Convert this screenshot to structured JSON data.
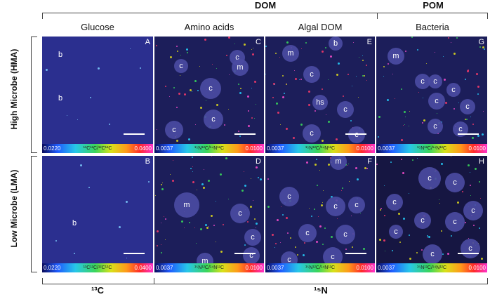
{
  "groups": {
    "dom": "DOM",
    "pom": "POM",
    "c13": "¹³C",
    "n15": "¹⁵N"
  },
  "columns": [
    "Glucose",
    "Amino acids",
    "Algal DOM",
    "Bacteria"
  ],
  "rows": [
    "High Microbe (HMA)",
    "Low Microbe (LMA)"
  ],
  "panels": [
    {
      "letter": "A",
      "scale_lo": "0.0220",
      "scale_mid": "¹³C¹²C/¹²C¹²C",
      "scale_hi": "0.0400"
    },
    {
      "letter": "C",
      "scale_lo": "0.0037",
      "scale_mid": "¹⁵N¹²C/¹⁴N¹²C",
      "scale_hi": "0.0100"
    },
    {
      "letter": "E",
      "scale_lo": "0.0037",
      "scale_mid": "¹⁵N¹²C/¹⁴N¹²C",
      "scale_hi": "0.0100"
    },
    {
      "letter": "G",
      "scale_lo": "0.0037",
      "scale_mid": "¹⁵N¹²C/¹⁴N¹²C",
      "scale_hi": "0.0100"
    },
    {
      "letter": "B",
      "scale_lo": "0.0220",
      "scale_mid": "¹³C¹²C/¹²C¹²C",
      "scale_hi": "0.0400"
    },
    {
      "letter": "D",
      "scale_lo": "0.0037",
      "scale_mid": "¹⁵N¹²C/¹⁴N¹²C",
      "scale_hi": "0.0100"
    },
    {
      "letter": "F",
      "scale_lo": "0.0037",
      "scale_mid": "¹⁵N¹²C/¹⁴N¹²C",
      "scale_hi": "0.0100"
    },
    {
      "letter": "H",
      "scale_lo": "0.0037",
      "scale_mid": "¹⁵N¹²C/¹⁴N¹²C",
      "scale_hi": "0.0100"
    }
  ],
  "annotation_labels": {
    "b": "b",
    "c": "c",
    "m": "m",
    "hs": "hs"
  },
  "colors": {
    "background": "#1a1a55",
    "cell": "#4a4a9a",
    "scalebar": "#ffffff"
  }
}
